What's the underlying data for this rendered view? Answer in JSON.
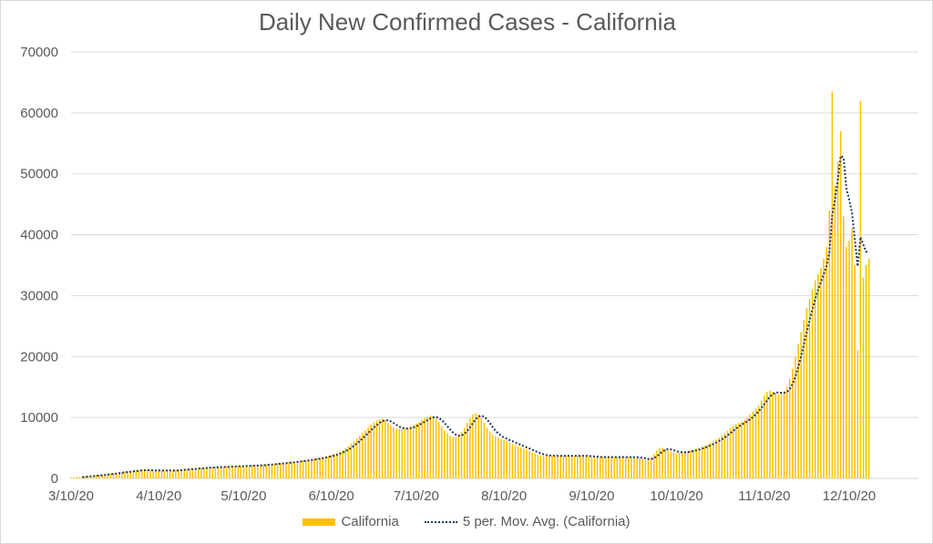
{
  "colors": {
    "bars": "#FFC000",
    "avg_line": "#203864",
    "grid": "#d9d9d9",
    "text": "#595959"
  },
  "chart_data": {
    "type": "bar",
    "title": "Daily New Confirmed Cases - California",
    "x_start": "3/10/20",
    "x_ticks": [
      "3/10/20",
      "4/10/20",
      "5/10/20",
      "6/10/20",
      "7/10/20",
      "8/10/20",
      "9/10/20",
      "10/10/20",
      "11/10/20",
      "12/10/20"
    ],
    "y_ticks": [
      0,
      10000,
      20000,
      30000,
      40000,
      50000,
      60000,
      70000
    ],
    "ylim": [
      0,
      70000
    ],
    "grid": true,
    "legend_position": "bottom",
    "series": [
      {
        "name": "California",
        "type": "bar",
        "values": [
          150,
          180,
          210,
          250,
          290,
          330,
          370,
          420,
          470,
          520,
          570,
          620,
          680,
          740,
          800,
          860,
          920,
          980,
          1040,
          1100,
          1150,
          1200,
          1260,
          1310,
          1360,
          1390,
          1350,
          1420,
          1260,
          1200,
          1290,
          1420,
          1300,
          1250,
          1230,
          1280,
          1320,
          1360,
          1410,
          1450,
          1490,
          1520,
          1550,
          1600,
          1640,
          1680,
          1720,
          1750,
          1780,
          1810,
          1830,
          1850,
          1870,
          1890,
          1910,
          1930,
          1950,
          1970,
          1990,
          2010,
          2030,
          2050,
          2070,
          2090,
          2110,
          2140,
          2170,
          2200,
          2240,
          2280,
          2320,
          2360,
          2400,
          2450,
          2500,
          2550,
          2600,
          2650,
          2700,
          2760,
          2820,
          2880,
          2950,
          3020,
          3090,
          3160,
          3240,
          3320,
          3400,
          3500,
          3600,
          3720,
          3860,
          4020,
          4200,
          4400,
          4650,
          4950,
          5300,
          5700,
          6100,
          6550,
          7000,
          7450,
          7900,
          8350,
          8800,
          9200,
          9500,
          9700,
          9800,
          9500,
          9100,
          8700,
          8400,
          8200,
          8100,
          8100,
          8200,
          8300,
          8500,
          8700,
          9000,
          9300,
          9600,
          9900,
          10100,
          10300,
          10200,
          9800,
          9200,
          8500,
          7900,
          7400,
          7000,
          6800,
          6800,
          7100,
          7600,
          8300,
          9100,
          9900,
          10500,
          10700,
          10500,
          9900,
          9100,
          8300,
          7700,
          7200,
          6900,
          6700,
          6500,
          6300,
          6100,
          5900,
          5700,
          5500,
          5300,
          5100,
          4900,
          4700,
          4500,
          4300,
          4100,
          3900,
          3800,
          3700,
          3700,
          3700,
          3700,
          3700,
          3700,
          3700,
          3700,
          3700,
          3700,
          3700,
          3700,
          3700,
          3700,
          3700,
          3700,
          3600,
          3500,
          3500,
          3500,
          3500,
          3500,
          3500,
          3500,
          3500,
          3500,
          3500,
          3500,
          3500,
          3500,
          3500,
          3500,
          3500,
          3400,
          3300,
          3200,
          3000,
          3000,
          3400,
          4000,
          4600,
          5000,
          5000,
          4800,
          4600,
          4400,
          4300,
          4200,
          4200,
          4300,
          4400,
          4500,
          4600,
          4700,
          4850,
          5000,
          5200,
          5400,
          5600,
          5850,
          6100,
          6400,
          6700,
          7000,
          7400,
          7800,
          8200,
          8600,
          8900,
          9100,
          9300,
          9600,
          10000,
          10500,
          11000,
          11500,
          12000,
          12800,
          13600,
          14200,
          14400,
          14200,
          14000,
          13800,
          13900,
          14300,
          15000,
          16300,
          18000,
          20000,
          22000,
          24000,
          26000,
          28000,
          29500,
          31000,
          32500,
          33500,
          34500,
          36000,
          38000,
          44000,
          63500,
          48000,
          52000,
          57000,
          43000,
          38000,
          39000,
          41000,
          35000,
          21000,
          62000,
          33000,
          35000,
          36000
        ]
      },
      {
        "name": "5 per. Mov. Avg. (California)",
        "type": "line"
      }
    ],
    "xlabel": "",
    "ylabel": ""
  }
}
